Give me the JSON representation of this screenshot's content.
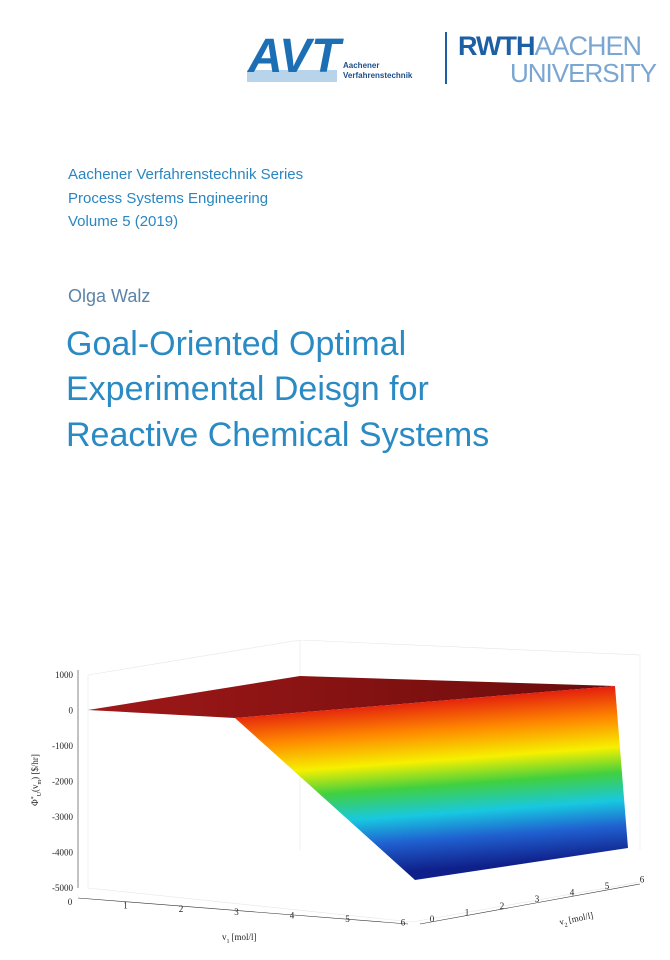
{
  "header": {
    "logo_left": "AVT",
    "logo_left_caption": [
      "Aachener",
      "Verfahrenstechnik"
    ],
    "logo_right": {
      "line1_bold": "RWTH",
      "line1_light": "AACHEN",
      "line2": "UNIVERSITY"
    }
  },
  "series": [
    "Aachener Verfahrenstechnik Series",
    "Process Systems Engineering",
    "Volume 5 (2019)"
  ],
  "author": "Olga Walz",
  "title": [
    "Goal-Oriented Optimal",
    "Experimental Deisgn for",
    "Reactive Chemical Systems"
  ],
  "figure": {
    "z_label": {
      "symbol": "Φ",
      "sup": "*",
      "index": "U",
      "arg": "(v",
      "arg_index": "m",
      "unit": ") [$/hr]"
    },
    "z_ticks": [
      1000,
      0,
      -1000,
      -2000,
      -3000,
      -4000,
      -5000
    ],
    "x_label": {
      "symbol": "v",
      "index": "1",
      "unit": "[mol/l]"
    },
    "x_ticks": [
      0,
      1,
      2,
      3,
      4,
      5,
      6
    ],
    "y_label": {
      "symbol": "v",
      "index": "2",
      "unit": "[mol/l]"
    },
    "y_ticks": [
      0,
      1,
      2,
      3,
      4,
      5,
      6
    ]
  }
}
